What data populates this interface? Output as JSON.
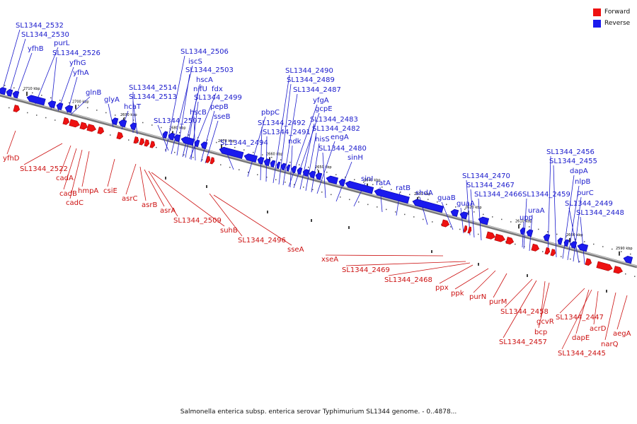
{
  "legend": {
    "forward_label": "Forward",
    "reverse_label": "Reverse",
    "forward_color": "#ee1111",
    "reverse_color": "#1a1aee"
  },
  "caption": "Salmonella enterica subsp. enterica serovar Typhimurium SL1344 genome. - 0..4878...",
  "label_colors": {
    "forward": "#cc1111",
    "reverse": "#1a1acc"
  },
  "ticks": [
    "2710 kbp",
    "2700 kbp",
    "2690 kbp",
    "2680 kbp",
    "2670 kbp",
    "2660 kbp",
    "2650 kbp",
    "2640 kbp",
    "2630 kbp",
    "2620 kbp",
    "2610 kbp",
    "2600 kbp",
    "2590 kbp"
  ],
  "reverse_genes": [
    "SL1344_2532",
    "SL1344_2530",
    "yfhB",
    "purL",
    "SL1344_2526",
    "yfhG",
    "yfhA",
    "glnB",
    "glyA",
    "hcaT",
    "SL1344_2514",
    "SL1344_2513",
    "SL1344_2506",
    "iscS",
    "SL1344_2503",
    "hscA",
    "nifU",
    "fdx",
    "SL1344_2499",
    "hscB",
    "pepB",
    "SL1344_2507",
    "sseB",
    "SL1344_2494",
    "pbpC",
    "SL1344_2492",
    "SL1344_2491",
    "SL1344_2490",
    "SL1344_2489",
    "SL1344_2487",
    "yfgA",
    "gcpE",
    "ndk",
    "SL1344_2483",
    "SL1344_2482",
    "hisS",
    "engA",
    "SL1344_2480",
    "sinH",
    "sinI",
    "ratA",
    "ratB",
    "shdA",
    "guaB",
    "guaA",
    "SL1344_2470",
    "SL1344_2467",
    "SL1344_2466",
    "SL1344_2459",
    "uraA",
    "upp",
    "SL1344_2456",
    "SL1344_2455",
    "dapA",
    "nlpB",
    "purC",
    "SL1344_2449",
    "SL1344_2448"
  ],
  "forward_genes": [
    "yfhD",
    "SL1344_2522",
    "cadA",
    "cadB",
    "hmpA",
    "cadC",
    "csiE",
    "asrC",
    "asrB",
    "asrA",
    "SL1344_2509",
    "suhB",
    "SL1344_2496",
    "sseA",
    "xseA",
    "SL1344_2469",
    "SL1344_2468",
    "ppx",
    "ppk",
    "purN",
    "purM",
    "SL1344_2458",
    "gcvR",
    "bcp",
    "SL1344_2457",
    "SL1344_2447",
    "acrD",
    "dapE",
    "SL1344_2445",
    "narQ",
    "aegA"
  ]
}
